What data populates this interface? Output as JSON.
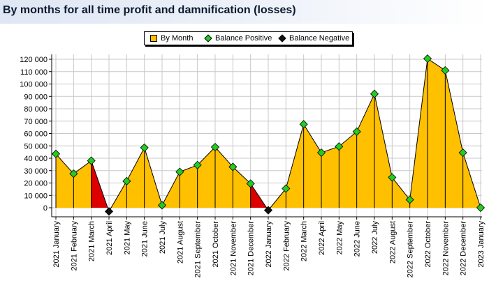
{
  "title": "By months for all time profit and damnification (losses)",
  "legend": [
    {
      "label": "By Month",
      "color": "#ffc000",
      "shape": "square"
    },
    {
      "label": "Balance Positive",
      "color": "#22cc22",
      "shape": "diamond"
    },
    {
      "label": "Balance Negative",
      "color": "#111111",
      "shape": "diamond"
    }
  ],
  "chart_data": {
    "type": "area",
    "title": "By months for all time profit and damnification (losses)",
    "xlabel": "",
    "ylabel": "",
    "ylim": [
      0,
      125000
    ],
    "yticks": [
      0,
      10000,
      20000,
      30000,
      40000,
      50000,
      60000,
      70000,
      80000,
      90000,
      100000,
      110000,
      120000
    ],
    "ytick_labels": [
      "0",
      "10 000",
      "20 000",
      "30 000",
      "40 000",
      "50 000",
      "60 000",
      "70 000",
      "80 000",
      "90 000",
      "100 000",
      "110 000",
      "120 000"
    ],
    "grid": true,
    "legend_position": "top-center",
    "colors": {
      "area": "#ffc000",
      "loss_area": "#dd0000",
      "positive_marker": "#22cc22",
      "negative_marker": "#111111"
    },
    "categories": [
      "2021 January",
      "2021 February",
      "2021 March",
      "2021 April",
      "2021 May",
      "2021 June",
      "2021 July",
      "2021 August",
      "2021 September",
      "2021 October",
      "2021 November",
      "2021 December",
      "2022 January",
      "2022 February",
      "2022 March",
      "2022 April",
      "2022 May",
      "2022 June",
      "2022 July",
      "2022 August",
      "2022 September",
      "2022 October",
      "2022 November",
      "2022 December",
      "2023 January"
    ],
    "series": [
      {
        "name": "By Month",
        "values": [
          43500,
          27500,
          38000,
          -3000,
          21500,
          48500,
          2000,
          29000,
          34500,
          49000,
          33000,
          19500,
          -2000,
          15500,
          67500,
          44500,
          49500,
          61500,
          92000,
          24500,
          6500,
          120500,
          111000,
          44500,
          0
        ]
      }
    ],
    "negative_segments": [
      [
        2,
        3
      ],
      [
        11,
        12
      ]
    ]
  }
}
